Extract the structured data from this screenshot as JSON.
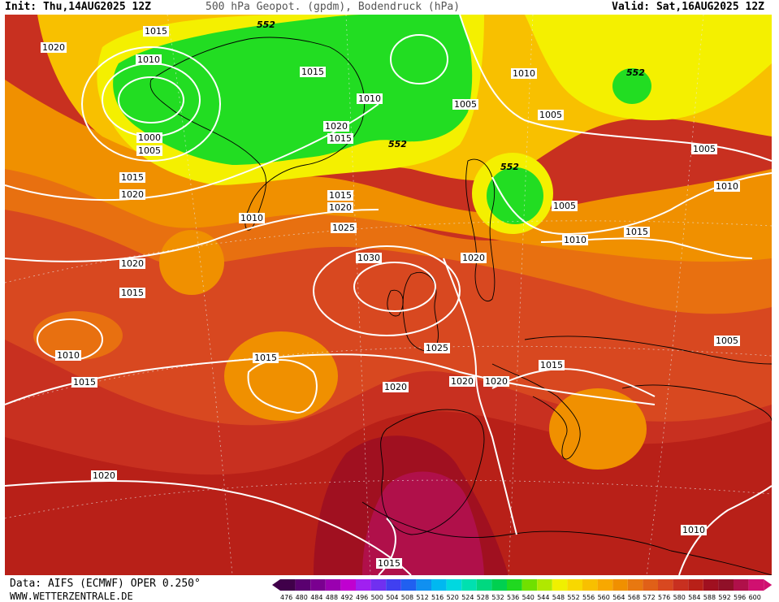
{
  "header": {
    "init": "Init: Thu,14AUG2025 12Z",
    "title": "500 hPa Geopot. (gpdm), Bodendruck (hPa)",
    "valid": "Valid: Sat,16AUG2025 12Z"
  },
  "footer": {
    "data_source": "Data: AIFS (ECMWF) OPER 0.250°",
    "website": "WWW.WETTERZENTRALE.DE"
  },
  "colors": {
    "green": "#22dd22",
    "yellow": "#f4f000",
    "light_orange": "#f8c000",
    "orange": "#f09000",
    "dark_orange": "#e87010",
    "red_orange": "#d84820",
    "red": "#c02818",
    "dark_red": "#a01020",
    "magenta_red": "#b0104a"
  },
  "isobar_labels": [
    {
      "id": "p1015-a",
      "text": "1015"
    },
    {
      "id": "p1020-a",
      "text": "1020"
    },
    {
      "id": "p1010-a",
      "text": "1010"
    },
    {
      "id": "p1015-b",
      "text": "1015"
    },
    {
      "id": "p1010-b",
      "text": "1010"
    },
    {
      "id": "p1020-b",
      "text": "1020"
    },
    {
      "id": "p1015-c",
      "text": "1015"
    },
    {
      "id": "p1000",
      "text": "1000"
    },
    {
      "id": "p1005-a",
      "text": "1005"
    },
    {
      "id": "p1005-b",
      "text": "1005"
    },
    {
      "id": "p1010-c",
      "text": "1010"
    },
    {
      "id": "p1005-c",
      "text": "1005"
    },
    {
      "id": "p1005-d",
      "text": "1005"
    },
    {
      "id": "p1015-d",
      "text": "1015"
    },
    {
      "id": "p1020-c",
      "text": "1020"
    },
    {
      "id": "p1010-d",
      "text": "1010"
    },
    {
      "id": "p1015-e",
      "text": "1015"
    },
    {
      "id": "p1020-d",
      "text": "1020"
    },
    {
      "id": "p1025",
      "text": "1025"
    },
    {
      "id": "p1030",
      "text": "1030"
    },
    {
      "id": "p1005-e",
      "text": "1005"
    },
    {
      "id": "p1010-e",
      "text": "1010"
    },
    {
      "id": "p1010-f",
      "text": "1010"
    },
    {
      "id": "p1015-f",
      "text": "1015"
    },
    {
      "id": "p1020-e",
      "text": "1020"
    },
    {
      "id": "p1020-f",
      "text": "1020"
    },
    {
      "id": "p1015-g",
      "text": "1015"
    },
    {
      "id": "p1010-g",
      "text": "1010"
    },
    {
      "id": "p1015-h",
      "text": "1015"
    },
    {
      "id": "p1025-b",
      "text": "1025"
    },
    {
      "id": "p1020-g",
      "text": "1020"
    },
    {
      "id": "p1020-h",
      "text": "1020"
    },
    {
      "id": "p1015-i",
      "text": "1015"
    },
    {
      "id": "p1015-j",
      "text": "1015"
    },
    {
      "id": "p1005-f",
      "text": "1005"
    },
    {
      "id": "p1020-i",
      "text": "1020"
    },
    {
      "id": "p1020-j",
      "text": "1020"
    },
    {
      "id": "p1015-k",
      "text": "1015"
    },
    {
      "id": "p1010-h",
      "text": "1010"
    }
  ],
  "geopotential_labels": [
    {
      "id": "g552-a",
      "text": "552"
    },
    {
      "id": "g552-b",
      "text": "552"
    },
    {
      "id": "g552-c",
      "text": "552"
    },
    {
      "id": "g552-d",
      "text": "552"
    }
  ],
  "color_scale": {
    "values": [
      "476",
      "480",
      "484",
      "488",
      "492",
      "496",
      "500",
      "504",
      "508",
      "512",
      "516",
      "520",
      "524",
      "528",
      "532",
      "536",
      "540",
      "544",
      "548",
      "552",
      "556",
      "560",
      "564",
      "568",
      "572",
      "576",
      "580",
      "584",
      "588",
      "592",
      "596",
      "600"
    ],
    "colors": [
      "#40004a",
      "#5a0070",
      "#7a0090",
      "#9a00b0",
      "#c000d0",
      "#a020f0",
      "#7030f0",
      "#4040f0",
      "#2060f0",
      "#1090f0",
      "#00b8f0",
      "#00d8e0",
      "#00e0b0",
      "#00d880",
      "#00d050",
      "#20d820",
      "#70e000",
      "#b0e800",
      "#f0f000",
      "#f8d800",
      "#f8c000",
      "#f8a800",
      "#f09000",
      "#e87810",
      "#e06018",
      "#d84820",
      "#c83020",
      "#b82018",
      "#a01020",
      "#901028",
      "#b0104a",
      "#d01070"
    ]
  }
}
